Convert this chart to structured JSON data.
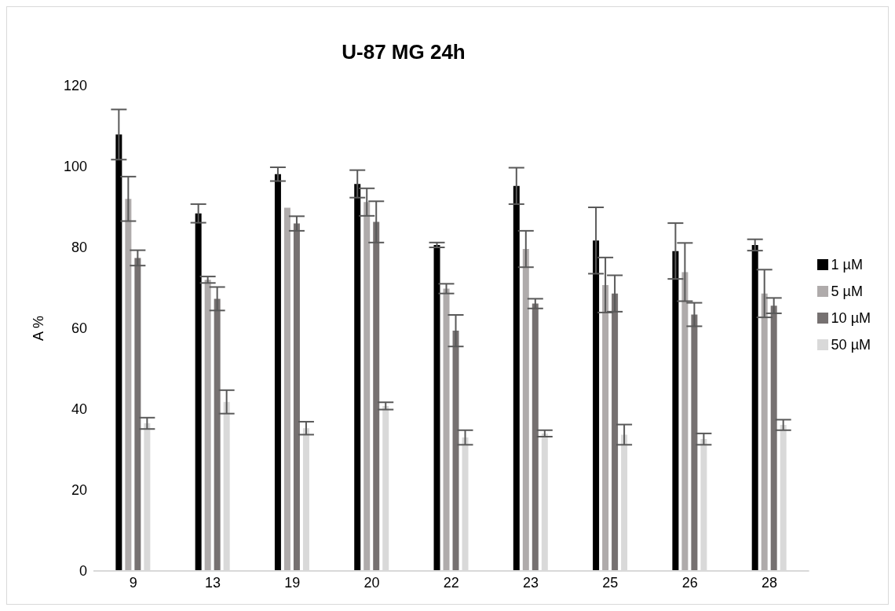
{
  "chart_data": {
    "type": "bar",
    "title": "U-87 MG 24h",
    "ylabel": "A %",
    "categories": [
      "9",
      "13",
      "19",
      "20",
      "22",
      "23",
      "25",
      "26",
      "28"
    ],
    "series": [
      {
        "name": "1 µM",
        "color": "#000000",
        "values": [
          107.9,
          88.4,
          98.1,
          95.7,
          80.6,
          95.2,
          81.7,
          79.1,
          80.6
        ],
        "errors": [
          6.2,
          2.3,
          1.7,
          3.4,
          0.6,
          4.5,
          8.2,
          6.9,
          1.4
        ]
      },
      {
        "name": "5 µM",
        "color": "#afabab",
        "values": [
          92.0,
          72.0,
          89.8,
          91.2,
          69.8,
          79.6,
          70.7,
          73.9,
          68.6
        ],
        "errors": [
          5.5,
          0.8,
          0,
          3.4,
          1.2,
          4.5,
          6.8,
          7.2,
          5.9
        ]
      },
      {
        "name": "10 µM",
        "color": "#767171",
        "values": [
          77.4,
          67.3,
          85.9,
          86.3,
          59.4,
          66.1,
          68.6,
          63.4,
          65.6
        ],
        "errors": [
          1.9,
          2.9,
          1.8,
          5.1,
          3.9,
          1.2,
          4.5,
          2.9,
          1.9
        ]
      },
      {
        "name": "50 µM",
        "color": "#d9d9d9",
        "values": [
          36.5,
          41.8,
          35.3,
          40.8,
          33.0,
          34.0,
          33.7,
          32.6,
          36.1
        ],
        "errors": [
          1.4,
          2.9,
          1.6,
          0.9,
          1.8,
          0.8,
          2.5,
          1.4,
          1.3
        ]
      }
    ],
    "ylim": [
      0,
      120
    ],
    "yticks": [
      0,
      20,
      40,
      60,
      80,
      100,
      120
    ],
    "grid": false,
    "legend": "right"
  }
}
